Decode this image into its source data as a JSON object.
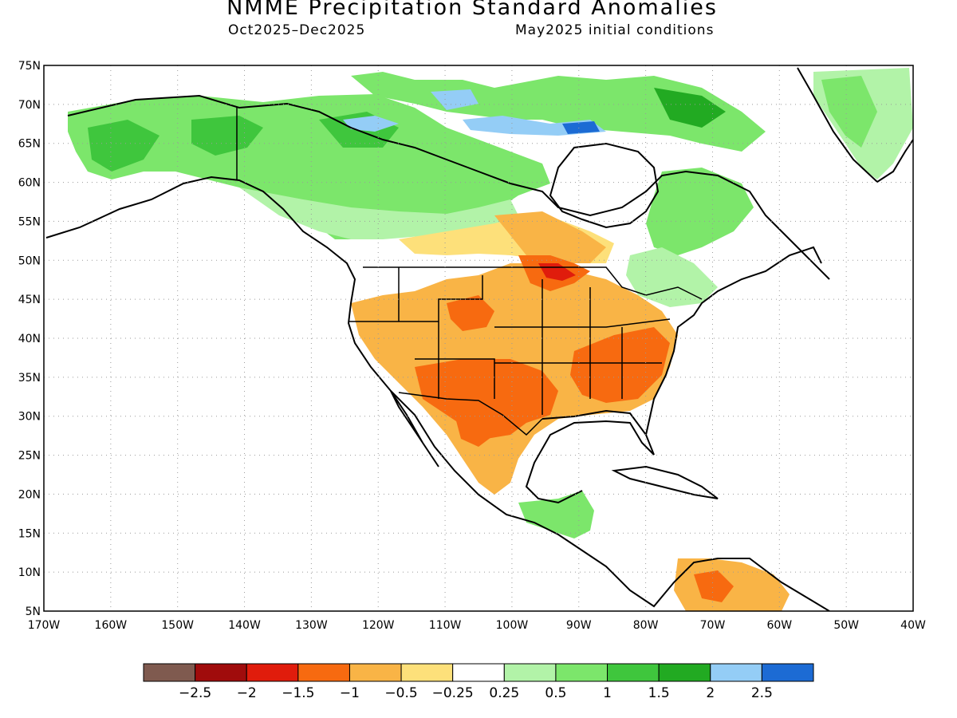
{
  "title": "NMME Precipitation Standard Anomalies",
  "period": "Oct2025–Dec2025",
  "init": "May2025 initial conditions",
  "lat_labels": [
    "75N",
    "70N",
    "65N",
    "60N",
    "55N",
    "50N",
    "45N",
    "40N",
    "35N",
    "30N",
    "25N",
    "20N",
    "15N",
    "10N",
    "5N"
  ],
  "lon_labels": [
    "170W",
    "160W",
    "150W",
    "140W",
    "130W",
    "120W",
    "110W",
    "100W",
    "90W",
    "80W",
    "70W",
    "60W",
    "50W",
    "40W"
  ],
  "colorbar": {
    "colors": [
      "#7f5a4f",
      "#a00c0c",
      "#e01c0c",
      "#f76a10",
      "#f9b446",
      "#fde07a",
      "#ffffff",
      "#b2f3a8",
      "#7ce66b",
      "#3fc63d",
      "#22aa22",
      "#94cdf6",
      "#1c6bd4"
    ],
    "labels": [
      "−2.5",
      "−2",
      "−1.5",
      "−1",
      "−0.5",
      "−0.25",
      "0.25",
      "0.5",
      "1",
      "1.5",
      "2",
      "2.5"
    ]
  }
}
